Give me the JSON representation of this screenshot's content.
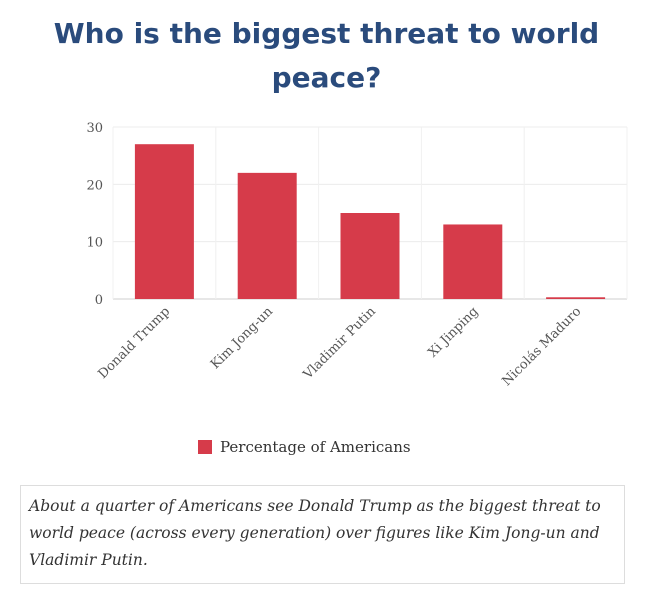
{
  "title": "Who is the biggest threat to world peace?",
  "legend": {
    "label": "Percentage of Americans",
    "color": "#d63b4a"
  },
  "caption": "About a quarter of Americans see Donald Trump as the biggest threat to world peace (across every generation) over figures like Kim Jong-un and Vladimir Putin.",
  "chart_data": {
    "type": "bar",
    "title": "Who is the biggest threat to world peace?",
    "xlabel": "",
    "ylabel": "",
    "categories": [
      "Donald Trump",
      "Kim Jong-un",
      "Vladimir Putin",
      "Xi Jinping",
      "Nicolás Maduro"
    ],
    "series": [
      {
        "name": "Percentage of Americans",
        "values": [
          27,
          22,
          15,
          13,
          0.3
        ]
      }
    ],
    "ylim": [
      0,
      30
    ],
    "yticks": [
      0,
      10,
      20,
      30
    ],
    "grid": true,
    "legend_position": "bottom-center",
    "bar_color": "#d63b4a"
  }
}
